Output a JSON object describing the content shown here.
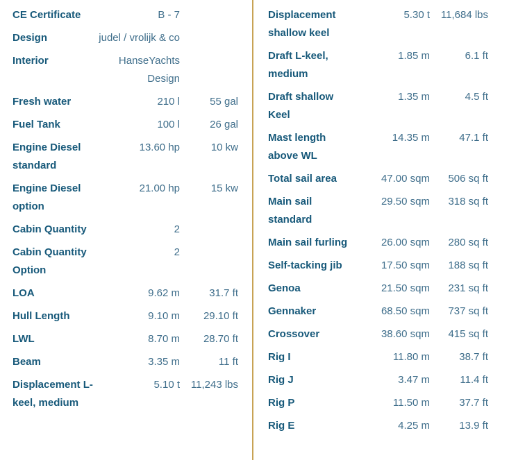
{
  "colors": {
    "background": "#ffffff",
    "divider": "#c8a355",
    "label_text": "#17597a",
    "value_text": "#3f6e8b"
  },
  "spec_table": {
    "left_column": {
      "rows": [
        {
          "label": "CE Certificate",
          "metric": "B - 7",
          "imperial": ""
        },
        {
          "label": "Design",
          "metric": "judel / vrolijk & co",
          "imperial": ""
        },
        {
          "label": "Interior",
          "metric": "HanseYachts Design",
          "imperial": ""
        },
        {
          "label": "Fresh water",
          "metric": "210 l",
          "imperial": "55 gal"
        },
        {
          "label": "Fuel Tank",
          "metric": "100 l",
          "imperial": "26 gal"
        },
        {
          "label": "Engine Diesel standard",
          "metric": "13.60 hp",
          "imperial": "10 kw"
        },
        {
          "label": "Engine Diesel option",
          "metric": "21.00 hp",
          "imperial": "15 kw"
        },
        {
          "label": "Cabin Quantity",
          "metric": "2",
          "imperial": ""
        },
        {
          "label": "Cabin Quantity Option",
          "metric": "2",
          "imperial": ""
        },
        {
          "label": "LOA",
          "metric": "9.62 m",
          "imperial": "31.7 ft"
        },
        {
          "label": "Hull Length",
          "metric": "9.10 m",
          "imperial": "29.10 ft"
        },
        {
          "label": "LWL",
          "metric": "8.70 m",
          "imperial": "28.70 ft"
        },
        {
          "label": "Beam",
          "metric": "3.35 m",
          "imperial": "11 ft"
        },
        {
          "label": "Displacement L-keel, medium",
          "metric": "5.10 t",
          "imperial": "11,243 lbs"
        }
      ]
    },
    "right_column": {
      "rows": [
        {
          "label": "Displacement shallow keel",
          "metric": "5.30 t",
          "imperial": "11,684 lbs"
        },
        {
          "label": "Draft L-keel, medium",
          "metric": "1.85 m",
          "imperial": "6.1 ft"
        },
        {
          "label": "Draft shallow Keel",
          "metric": "1.35 m",
          "imperial": "4.5 ft"
        },
        {
          "label": "Mast length above WL",
          "metric": "14.35 m",
          "imperial": "47.1 ft"
        },
        {
          "label": "Total sail area",
          "metric": "47.00 sqm",
          "imperial": "506 sq ft"
        },
        {
          "label": "Main sail standard",
          "metric": "29.50 sqm",
          "imperial": "318 sq ft"
        },
        {
          "label": "Main sail furling",
          "metric": "26.00 sqm",
          "imperial": "280 sq ft"
        },
        {
          "label": "Self-tacking jib",
          "metric": "17.50 sqm",
          "imperial": "188 sq ft"
        },
        {
          "label": "Genoa",
          "metric": "21.50 sqm",
          "imperial": "231 sq ft"
        },
        {
          "label": "Gennaker",
          "metric": "68.50 sqm",
          "imperial": "737 sq ft"
        },
        {
          "label": "Crossover",
          "metric": "38.60 sqm",
          "imperial": "415 sq ft"
        },
        {
          "label": "Rig I",
          "metric": "11.80 m",
          "imperial": "38.7 ft"
        },
        {
          "label": "Rig J",
          "metric": "3.47 m",
          "imperial": "11.4 ft"
        },
        {
          "label": "Rig P",
          "metric": "11.50 m",
          "imperial": "37.7 ft"
        },
        {
          "label": "Rig E",
          "metric": "4.25 m",
          "imperial": "13.9 ft"
        }
      ]
    }
  }
}
